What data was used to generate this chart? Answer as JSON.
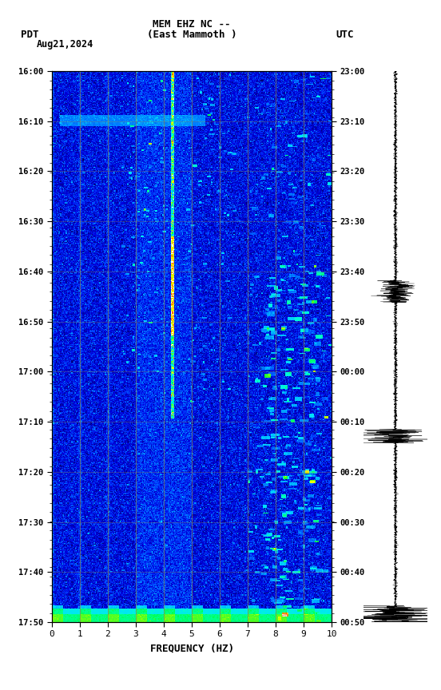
{
  "title_line1": "MEM EHZ NC --",
  "title_line2": "(East Mammoth )",
  "left_label": "PDT",
  "date_label": "Aug21,2024",
  "right_label": "UTC",
  "xlabel": "FREQUENCY (HZ)",
  "freq_min": 0,
  "freq_max": 10,
  "pdt_ticks": [
    "16:00",
    "16:10",
    "16:20",
    "16:30",
    "16:40",
    "16:50",
    "17:00",
    "17:10",
    "17:20",
    "17:30",
    "17:40",
    "17:50"
  ],
  "utc_ticks": [
    "23:00",
    "23:10",
    "23:20",
    "23:30",
    "23:40",
    "23:50",
    "00:00",
    "00:10",
    "00:20",
    "00:30",
    "00:40",
    "00:50"
  ],
  "freq_ticks": [
    0,
    1,
    2,
    3,
    4,
    5,
    6,
    7,
    8,
    9,
    10
  ],
  "n_time": 600,
  "n_freq": 300,
  "grid_color": "#888855",
  "cmap_colors": [
    [
      0.0,
      "#000055"
    ],
    [
      0.08,
      "#000099"
    ],
    [
      0.2,
      "#0000dd"
    ],
    [
      0.32,
      "#0044ff"
    ],
    [
      0.44,
      "#0099ff"
    ],
    [
      0.54,
      "#00ddff"
    ],
    [
      0.63,
      "#00ffcc"
    ],
    [
      0.72,
      "#00ff44"
    ],
    [
      0.8,
      "#aaff00"
    ],
    [
      0.87,
      "#ffff00"
    ],
    [
      0.93,
      "#ffaa00"
    ],
    [
      0.97,
      "#ff4400"
    ],
    [
      1.0,
      "#ffffff"
    ]
  ]
}
